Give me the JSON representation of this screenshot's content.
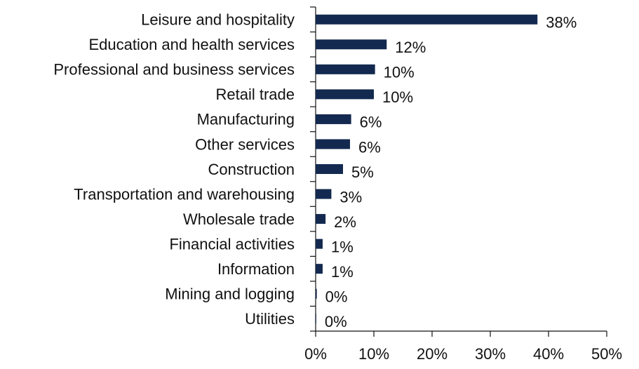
{
  "chart_data": {
    "type": "barh",
    "categories": [
      "Leisure and hospitality",
      "Education and health services",
      "Professional and business services",
      "Retail trade",
      "Manufacturing",
      "Other services",
      "Construction",
      "Transportation and warehousing",
      "Wholesale trade",
      "Financial activities",
      "Information",
      "Mining and logging",
      "Utilities"
    ],
    "values": [
      38.1,
      12.2,
      10.2,
      10.0,
      6.1,
      5.9,
      4.7,
      2.7,
      1.7,
      1.2,
      1.2,
      0.2,
      0.1
    ],
    "value_labels": [
      "38%",
      "12%",
      "10%",
      "10%",
      "6%",
      "6%",
      "5%",
      "3%",
      "2%",
      "1%",
      "1%",
      "0%",
      "0%"
    ],
    "color": "#13294f",
    "xlim": [
      0,
      50
    ],
    "xticks": [
      {
        "value": 0,
        "label": "0%"
      },
      {
        "value": 10,
        "label": "10%"
      },
      {
        "value": 20,
        "label": "20%"
      },
      {
        "value": 30,
        "label": "30%"
      },
      {
        "value": 40,
        "label": "40%"
      },
      {
        "value": 50,
        "label": "50%"
      }
    ]
  }
}
